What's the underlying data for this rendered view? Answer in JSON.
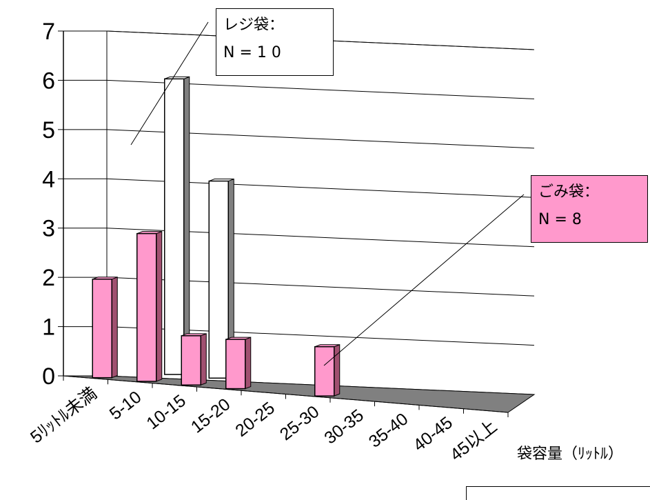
{
  "chart_data": {
    "type": "bar",
    "categories": [
      "5ﾘｯﾄﾙ未満",
      "5-10",
      "10-15",
      "15-20",
      "20-25",
      "25-30",
      "30-35",
      "35-40",
      "40-45",
      "45以上"
    ],
    "series": [
      {
        "name": "ごみ袋",
        "values": [
          2,
          3,
          1,
          1,
          0,
          1,
          0,
          0,
          0,
          0
        ],
        "color": "#ff99cc"
      },
      {
        "name": "レジ袋",
        "values": [
          0,
          6,
          4,
          0,
          0,
          0,
          0,
          0,
          0,
          0
        ],
        "color": "#ffffff"
      }
    ],
    "ylim": [
      0,
      7
    ],
    "yticks": [
      "0",
      "1",
      "2",
      "3",
      "4",
      "5",
      "6",
      "7"
    ],
    "xlabel": "袋容量（ﾘｯﾄﾙ）",
    "ylabel": "",
    "grid": true,
    "floor_color": "#808080",
    "bar_side_color": "#808080"
  },
  "callouts": {
    "reji": {
      "title": "レジ袋：",
      "count": "N = 1 0"
    },
    "gomi": {
      "title": "ごみ袋：",
      "count": "N = 8"
    }
  }
}
